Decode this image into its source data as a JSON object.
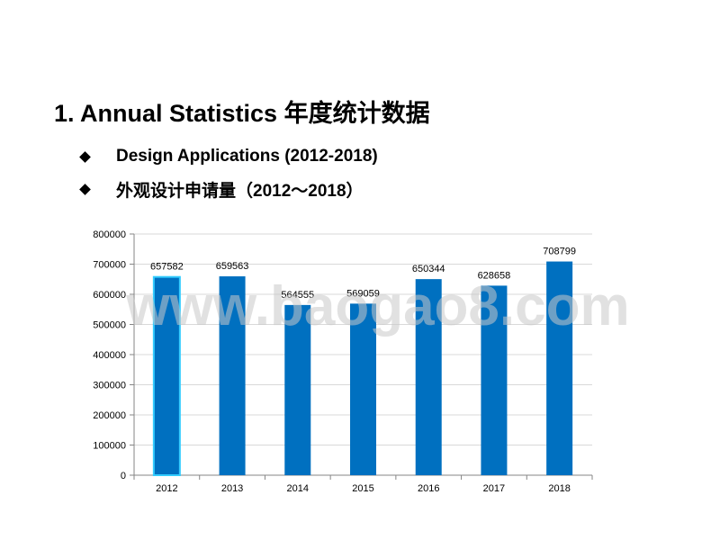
{
  "slide": {
    "title": "1.  Annual Statistics 年度统计数据",
    "bullets": [
      "Design Applications (2012-2018)",
      "外观设计申请量（2012～2018）"
    ]
  },
  "watermark": {
    "text": "www.baogao8.com"
  },
  "colors": {
    "bar": "#0070C0",
    "bar_highlight_edge": "#33CCFF",
    "grid": "#D9D9D9",
    "axis": "#868686"
  },
  "chart_data": {
    "type": "bar",
    "categories": [
      "2012",
      "2013",
      "2014",
      "2015",
      "2016",
      "2017",
      "2018"
    ],
    "values": [
      657582,
      659563,
      564555,
      569059,
      650344,
      628658,
      708799
    ],
    "data_labels": [
      "657582",
      "659563",
      "564555",
      "569059",
      "650344",
      "628658",
      "708799"
    ],
    "title": "",
    "xlabel": "",
    "ylabel": "",
    "ylim": [
      0,
      800000
    ],
    "yticks": [
      0,
      100000,
      200000,
      300000,
      400000,
      500000,
      600000,
      700000,
      800000
    ],
    "ytick_labels": [
      "0",
      "100000",
      "200000",
      "300000",
      "400000",
      "500000",
      "600000",
      "700000",
      "800000"
    ],
    "grid": true,
    "legend": "none"
  }
}
